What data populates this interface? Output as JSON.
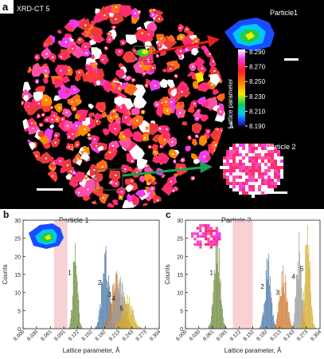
{
  "panel_a": {
    "letter": "a",
    "title": "XRD-CT 5",
    "inset1_label": "Particle1",
    "inset2_label": "Particle 2",
    "colorbar": {
      "ticks": [
        "8.290",
        "8.270",
        "8.250",
        "8.230",
        "8.210",
        "8.190"
      ],
      "label": "Lattice parameter",
      "unit": "Å",
      "colors": [
        "#ffffff",
        "#f23be8",
        "#ff1a1a",
        "#ff8a00",
        "#ffe600",
        "#00d25a",
        "#00c8ff",
        "#1a4dff",
        "#2a0070"
      ]
    }
  },
  "chart_data": [
    {
      "type": "bar",
      "panel_letter": "b",
      "title": "Particle 1",
      "xlabel": "Lattice parameter, Å",
      "ylabel": "Counts",
      "ylim": [
        0,
        30
      ],
      "xlim": [
        8.0,
        8.304
      ],
      "x_ticks": [
        "8.000",
        "8.030",
        "8.061",
        "8.091",
        "8.122",
        "8.152",
        "8.182",
        "8.213",
        "8.243",
        "8.273",
        "8.304"
      ],
      "y_ticks": [
        "0",
        "5",
        "10",
        "15",
        "20",
        "25",
        "30"
      ],
      "shaded_region": [
        8.069,
        8.099
      ],
      "peak_labels": [
        "1",
        "2",
        "3",
        "4",
        "5"
      ],
      "series": [
        {
          "label": "1",
          "color": "#6e8c3e",
          "center": 8.116,
          "width": 0.005,
          "peak": 27
        },
        {
          "label": "2",
          "color": "#4a78a8",
          "center": 8.183,
          "width": 0.008,
          "peak": 22
        },
        {
          "label": "3",
          "color": "#cc7a30",
          "center": 8.205,
          "width": 0.01,
          "peak": 16
        },
        {
          "label": "4",
          "color": "#9a9a9a",
          "center": 8.214,
          "width": 0.012,
          "peak": 14
        },
        {
          "label": "5",
          "color": "#d4ac2a",
          "center": 8.232,
          "width": 0.012,
          "peak": 9
        }
      ]
    },
    {
      "type": "bar",
      "panel_letter": "c",
      "title": "Particle 2",
      "xlabel": "Lattice parameter, Å",
      "ylabel": "Counts",
      "ylim": [
        0,
        30
      ],
      "xlim": [
        8.0,
        8.304
      ],
      "x_ticks": [
        "8.000",
        "8.030",
        "8.061",
        "8.091",
        "8.122",
        "8.152",
        "8.182",
        "8.213",
        "8.243",
        "8.273",
        "8.304"
      ],
      "y_ticks": [
        "0",
        "5",
        "10",
        "15",
        "20",
        "25",
        "30"
      ],
      "shaded_region": [
        8.107,
        8.152
      ],
      "peak_labels": [
        "1",
        "2",
        "3",
        "4",
        "5"
      ],
      "series": [
        {
          "label": "1",
          "color": "#6e8c3e",
          "center": 8.071,
          "width": 0.007,
          "peak": 27
        },
        {
          "label": "2",
          "color": "#4a78a8",
          "center": 8.186,
          "width": 0.007,
          "peak": 20
        },
        {
          "label": "3",
          "color": "#cc7a30",
          "center": 8.22,
          "width": 0.008,
          "peak": 17
        },
        {
          "label": "4",
          "color": "#9a9a9a",
          "center": 8.256,
          "width": 0.006,
          "peak": 25
        },
        {
          "label": "5",
          "color": "#d4ac2a",
          "center": 8.275,
          "width": 0.006,
          "peak": 29
        }
      ]
    }
  ]
}
